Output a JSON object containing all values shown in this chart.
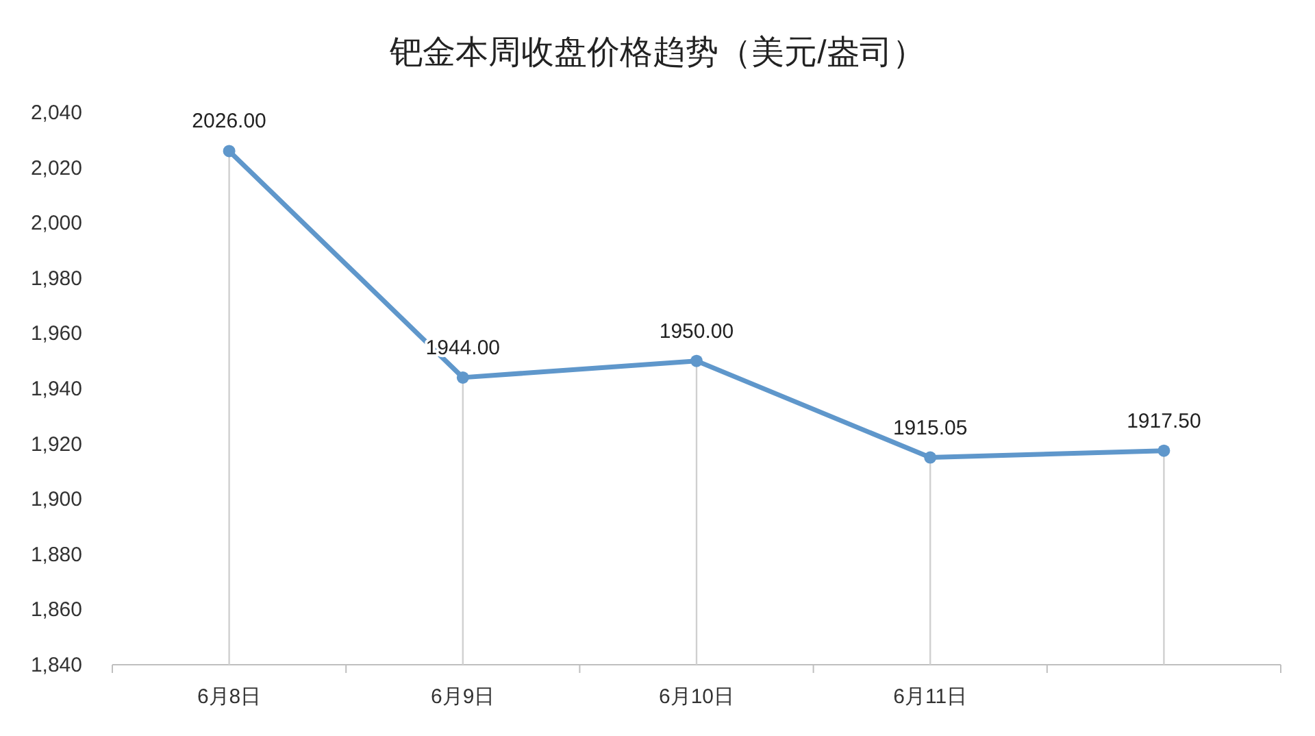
{
  "chart_data": {
    "type": "line",
    "title": "钯金本周收盘价格趋势（美元/盎司）",
    "categories": [
      "6月8日",
      "6月9日",
      "6月10日",
      "6月11日",
      null
    ],
    "series": [
      {
        "color": "#5f97cb",
        "values": [
          2026.0,
          1944.0,
          1950.0,
          1915.05,
          1917.5
        ],
        "value_labels": [
          "2026.00",
          "1944.00",
          "1950.00",
          "1915.05",
          "1917.50"
        ]
      }
    ],
    "ylim": [
      1840,
      2040
    ],
    "yticks": [
      {
        "value": 1840,
        "label": "1,840"
      },
      {
        "value": 1860,
        "label": "1,860"
      },
      {
        "value": 1880,
        "label": "1,880"
      },
      {
        "value": 1900,
        "label": "1,900"
      },
      {
        "value": 1920,
        "label": "1,920"
      },
      {
        "value": 1940,
        "label": "1,940"
      },
      {
        "value": 1960,
        "label": "1,960"
      },
      {
        "value": 1980,
        "label": "1,980"
      },
      {
        "value": 2000,
        "label": "2,000"
      },
      {
        "value": 2020,
        "label": "2,020"
      },
      {
        "value": 2040,
        "label": "2,040"
      }
    ],
    "grid": "x",
    "marker": "circle",
    "line_style": "solid"
  }
}
